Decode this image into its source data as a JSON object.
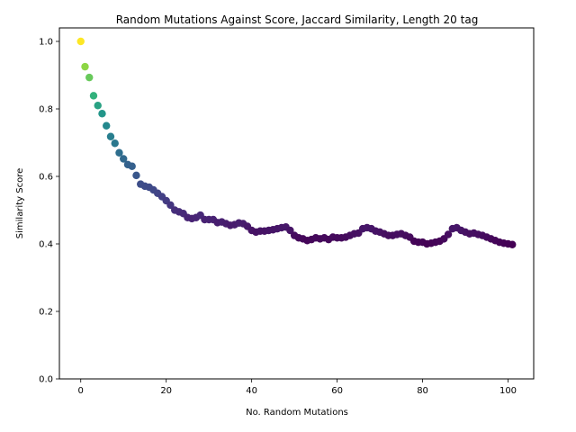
{
  "chart_data": {
    "type": "scatter",
    "title": "Random Mutations Against Score, Jaccard Similarity, Length 20 tag",
    "xlabel": "No. Random Mutations",
    "ylabel": "Similarity Score",
    "xlim": [
      -5,
      106
    ],
    "ylim": [
      0.0,
      1.04
    ],
    "xticks": [
      0,
      20,
      40,
      60,
      80,
      100
    ],
    "xtick_labels": [
      "0",
      "20",
      "40",
      "60",
      "80",
      "100"
    ],
    "yticks": [
      0.0,
      0.2,
      0.4,
      0.6,
      0.8,
      1.0
    ],
    "ytick_labels": [
      "0.0",
      "0.2",
      "0.4",
      "0.6",
      "0.8",
      "1.0"
    ],
    "grid": false,
    "colormap": "viridis (color mapped to similarity score)",
    "x": [
      0,
      1,
      2,
      3,
      4,
      5,
      6,
      7,
      8,
      9,
      10,
      11,
      12,
      13,
      14,
      15,
      16,
      17,
      18,
      19,
      20,
      21,
      22,
      23,
      24,
      25,
      26,
      27,
      28,
      29,
      30,
      31,
      32,
      33,
      34,
      35,
      36,
      37,
      38,
      39,
      40,
      41,
      42,
      43,
      44,
      45,
      46,
      47,
      48,
      49,
      50,
      51,
      52,
      53,
      54,
      55,
      56,
      57,
      58,
      59,
      60,
      61,
      62,
      63,
      64,
      65,
      66,
      67,
      68,
      69,
      70,
      71,
      72,
      73,
      74,
      75,
      76,
      77,
      78,
      79,
      80,
      81,
      82,
      83,
      84,
      85,
      86,
      87,
      88,
      89,
      90,
      91,
      92,
      93,
      94,
      95,
      96,
      97,
      98,
      99,
      100,
      101
    ],
    "y": [
      1.0,
      0.925,
      0.893,
      0.839,
      0.81,
      0.786,
      0.75,
      0.718,
      0.698,
      0.67,
      0.652,
      0.635,
      0.63,
      0.603,
      0.577,
      0.571,
      0.568,
      0.56,
      0.55,
      0.54,
      0.528,
      0.515,
      0.5,
      0.495,
      0.49,
      0.478,
      0.475,
      0.478,
      0.485,
      0.472,
      0.472,
      0.472,
      0.463,
      0.465,
      0.46,
      0.455,
      0.457,
      0.462,
      0.46,
      0.452,
      0.44,
      0.435,
      0.438,
      0.438,
      0.44,
      0.442,
      0.445,
      0.448,
      0.45,
      0.44,
      0.425,
      0.418,
      0.415,
      0.41,
      0.413,
      0.418,
      0.415,
      0.418,
      0.413,
      0.42,
      0.418,
      0.418,
      0.42,
      0.425,
      0.43,
      0.432,
      0.445,
      0.448,
      0.445,
      0.438,
      0.435,
      0.43,
      0.425,
      0.425,
      0.428,
      0.43,
      0.425,
      0.42,
      0.408,
      0.405,
      0.405,
      0.4,
      0.402,
      0.405,
      0.408,
      0.415,
      0.428,
      0.445,
      0.448,
      0.44,
      0.435,
      0.43,
      0.432,
      0.428,
      0.425,
      0.42,
      0.415,
      0.41,
      0.405,
      0.402,
      0.4,
      0.398
    ]
  }
}
